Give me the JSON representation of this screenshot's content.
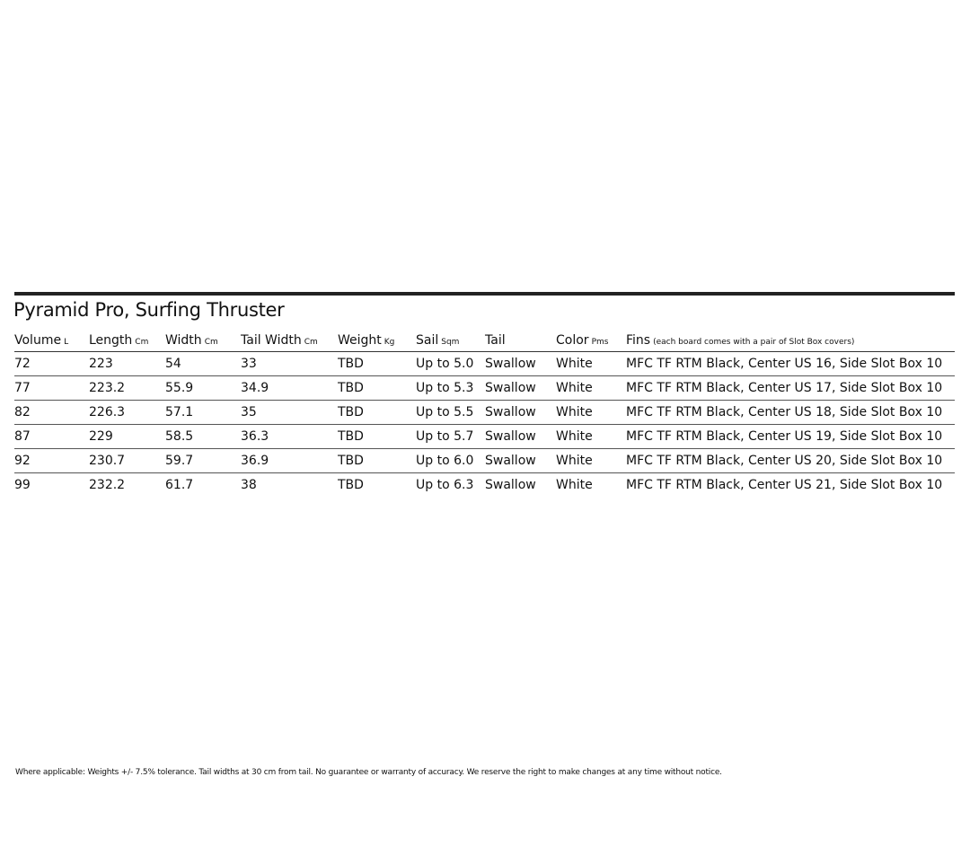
{
  "title": "Pyramid Pro, Surfing Thruster",
  "columns": [
    {
      "label": "Volume",
      "unit": "L"
    },
    {
      "label": "Length",
      "unit": "Cm"
    },
    {
      "label": "Width",
      "unit": "Cm"
    },
    {
      "label": "Tail Width",
      "unit": "Cm"
    },
    {
      "label": "Weight",
      "unit": "Kg"
    },
    {
      "label": "Sail",
      "unit": "Sqm"
    },
    {
      "label": "Tail",
      "unit": ""
    },
    {
      "label": "Color",
      "unit": "Pms"
    },
    {
      "label": "Fins",
      "unit": "(each board comes with a pair of Slot Box covers)"
    }
  ],
  "rows": [
    [
      "72",
      "223",
      "54",
      "33",
      "TBD",
      "Up to 5.0",
      "Swallow",
      "White",
      "MFC TF RTM Black, Center US 16, Side Slot Box 10"
    ],
    [
      "77",
      "223.2",
      "55.9",
      "34.9",
      "TBD",
      "Up to 5.3",
      "Swallow",
      "White",
      "MFC TF RTM Black, Center US 17, Side Slot Box 10"
    ],
    [
      "82",
      "226.3",
      "57.1",
      "35",
      "TBD",
      "Up to 5.5",
      "Swallow",
      "White",
      "MFC TF RTM Black, Center US 18, Side Slot Box 10"
    ],
    [
      "87",
      "229",
      "58.5",
      "36.3",
      "TBD",
      "Up to 5.7",
      "Swallow",
      "White",
      "MFC TF RTM Black, Center US 19, Side Slot Box 10"
    ],
    [
      "92",
      "230.7",
      "59.7",
      "36.9",
      "TBD",
      "Up to 6.0",
      "Swallow",
      "White",
      "MFC TF RTM Black, Center US 20, Side Slot Box 10"
    ],
    [
      "99",
      "232.2",
      "61.7",
      "38",
      "TBD",
      "Up to 6.3",
      "Swallow",
      "White",
      "MFC TF RTM Black, Center US 21, Side Slot Box 10"
    ]
  ],
  "footnote": "Where applicable: Weights +/- 7.5% tolerance. Tail widths at 30 cm from tail. No guarantee or warranty of accuracy. We reserve the right to make changes at any time without notice."
}
